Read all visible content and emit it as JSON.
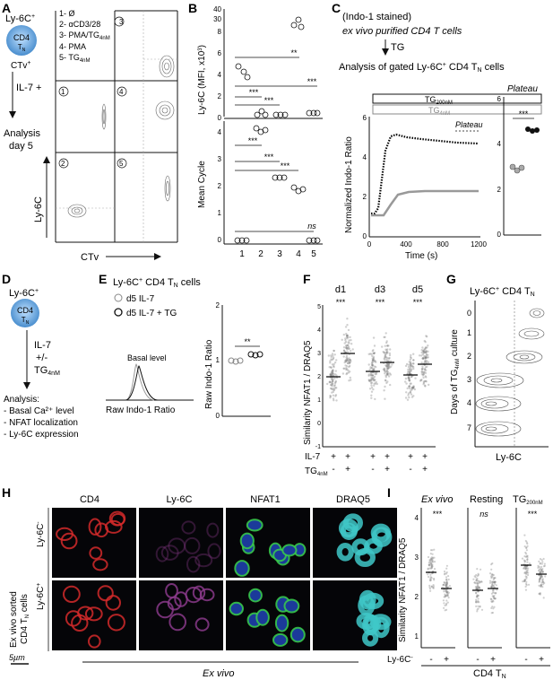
{
  "panels": {
    "A": {
      "letter": "A",
      "cell_top": "Ly-6C",
      "cell_top_sup": "+",
      "cell_label": "CD4",
      "cell_sub": "T",
      "cell_sub_n": "N",
      "ctv_label": "CTv",
      "ctv_sup": "+",
      "il7": "IL-7 +",
      "conditions": [
        "1- Ø",
        "2- αCD3/28",
        "3- PMA/TG",
        "4- PMA",
        "5- TG"
      ],
      "cond_sub": "4nM",
      "analysis": [
        "Analysis",
        "day 5"
      ],
      "quadrants": [
        "3",
        "1",
        "4",
        "2",
        "5"
      ],
      "ylabel": "Ly-6C",
      "xlabel": "CTv"
    },
    "B": {
      "letter": "B",
      "top_ylabel": "Ly-6C (MFI, x10",
      "top_ylabel_sup": "3",
      "top_ylabel_end": ")",
      "top_ticks": [
        "0",
        "2",
        "4",
        "6",
        "8",
        "30",
        "40"
      ],
      "bottom_ylabel": "Mean Cycle",
      "bottom_ticks": [
        "0",
        "1",
        "2",
        "3",
        "4"
      ],
      "xticks": [
        "1",
        "2",
        "3",
        "4",
        "5"
      ],
      "sig": [
        "**",
        "***",
        "***",
        "***",
        "***",
        "***",
        "***",
        "ns"
      ]
    },
    "C": {
      "letter": "C",
      "lines": [
        "(Indo-1 stained)",
        "ex vivo purified CD4 T cells",
        "TG",
        "Analysis of gated Ly-6C",
        " CD4 T",
        " cells"
      ],
      "tg_top": "TG",
      "tg_top_sub": "200nM",
      "tg_bot": "TG",
      "tg_bot_sub": "4nM",
      "plateau": "Plateau",
      "ylabel": "Normalized Indo-1 Ratio",
      "xlabel": "Time (s)",
      "xticks": [
        "0",
        "400",
        "800",
        "1200"
      ],
      "yticks": [
        "0",
        "2",
        "4",
        "6"
      ],
      "side_title": "Plateau",
      "side_yticks": [
        "0",
        "2",
        "4",
        "6"
      ],
      "side_sig": "***"
    },
    "D": {
      "letter": "D",
      "cell_top": "Ly-6C",
      "cell_label": "CD4",
      "steps": [
        "IL-7",
        "+/-",
        "TG"
      ],
      "tg_sub": "4nM",
      "analysis": [
        "Analysis:",
        "- Basal Ca²⁺ level",
        "- NFAT localization",
        "- Ly-6C expression"
      ]
    },
    "E": {
      "letter": "E",
      "title": "Ly-6C",
      "title_end": " CD4 T",
      "title_n": "N",
      "title_cells": " cells",
      "legend": [
        "d5 IL-7",
        "d5 IL-7 + TG"
      ],
      "basal": "Basal level",
      "hist_xlabel": "Raw Indo-1 Ratio",
      "ylabel": "Raw Indo-1 Ratio",
      "yticks": [
        "0",
        "1",
        "2"
      ],
      "sig": "**"
    },
    "F": {
      "letter": "F",
      "days": [
        "d1",
        "d3",
        "d5"
      ],
      "sig": [
        "***",
        "***",
        "***"
      ],
      "ylabel": "Similarity NFAT1 / DRAQ5",
      "yticks": [
        "-1",
        "0",
        "1",
        "2",
        "3",
        "4",
        "5"
      ],
      "row1": "IL-7",
      "row2": "TG",
      "row2_sub": "4nM",
      "row1_signs": [
        "+",
        "+",
        "+",
        "+",
        "+",
        "+"
      ],
      "row2_signs": [
        "-",
        "+",
        "-",
        "+",
        "-",
        "+"
      ]
    },
    "G": {
      "letter": "G",
      "title": "Ly-6C",
      "title_end": " CD4 T",
      "title_n": "N",
      "ylabel": "Days of TG",
      "ylabel_sub": "4nM",
      "ylabel_end": " culture",
      "rows": [
        "0",
        "1",
        "2",
        "3",
        "4",
        "7"
      ],
      "xlabel": "Ly-6C"
    },
    "H": {
      "letter": "H",
      "cols": [
        "CD4",
        "Ly-6C",
        "NFAT1",
        "DRAQ5"
      ],
      "row_labels": [
        "Ly-6C",
        "Ly-6C"
      ],
      "row_signs": [
        "-",
        "+"
      ],
      "side_label": [
        "Ex vivo sorted",
        "CD4 T",
        " cells"
      ],
      "scale": "5µm",
      "footer": "Ex vivo"
    },
    "I": {
      "letter": "I",
      "groups": [
        "Ex vivo",
        "Resting",
        "TG"
      ],
      "tg_sub": "200nM",
      "sig": [
        "***",
        "ns",
        "***"
      ],
      "ylabel": "Similarity NFAT1 / DRAQ5",
      "yticks": [
        "1",
        "2",
        "3",
        "4"
      ],
      "row": "Ly-6C",
      "signs": [
        "-",
        "+",
        "-",
        "+",
        "-",
        "+"
      ],
      "footer": "CD4 T",
      "footer_n": "N"
    }
  },
  "colors": {
    "accent_cell": "#4a9ad8",
    "tg_high": "#000000",
    "tg_low": "#9a9a9a",
    "cd4_stain": "#d42a2a",
    "ly6c_stain": "#8a3a8a",
    "nfat1_stain": "#3ad04a",
    "draq5_stain": "#40c8c8"
  }
}
